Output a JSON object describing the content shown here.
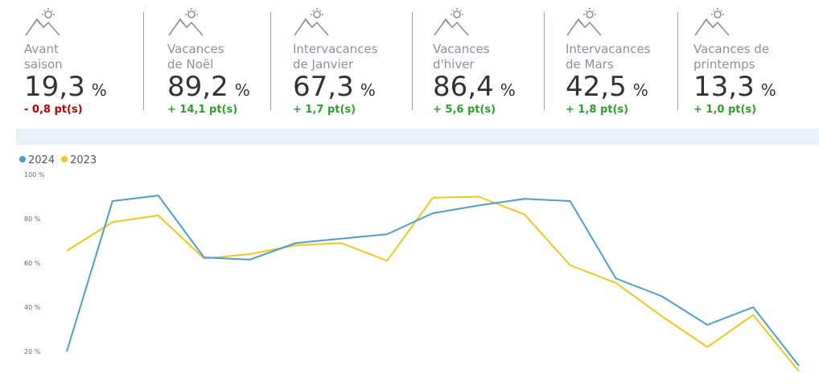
{
  "kpis": [
    {
      "label": [
        "Avant",
        "saison"
      ],
      "value": "19,3",
      "unit": "%",
      "delta": "- 0,8 pt(s)",
      "delta_color": "#c00000"
    },
    {
      "label": [
        "Vacances",
        "de Noël"
      ],
      "value": "89,2",
      "unit": "%",
      "delta": "+ 14,1 pt(s)",
      "delta_color": "#2ca02c"
    },
    {
      "label": [
        "Intervacances",
        "de Janvier"
      ],
      "value": "67,3",
      "unit": "%",
      "delta": "+ 1,7 pt(s)",
      "delta_color": "#2ca02c"
    },
    {
      "label": [
        "Vacances",
        "d'hiver"
      ],
      "value": "86,4",
      "unit": "%",
      "delta": "+ 5,6 pt(s)",
      "delta_color": "#2ca02c"
    },
    {
      "label": [
        "Intervacances",
        "de Mars"
      ],
      "value": "42,5",
      "unit": "%",
      "delta": "+ 1,8 pt(s)",
      "delta_color": "#2ca02c"
    },
    {
      "label": [
        "Vacances de",
        "printemps"
      ],
      "value": "13,3",
      "unit": "%",
      "delta": "+ 1,0 pt(s)",
      "delta_color": "#2ca02c"
    }
  ],
  "chart_data": {
    "type": "line",
    "categories": [
      null,
      null,
      null,
      null,
      null,
      null,
      null,
      null,
      null,
      null,
      null,
      null,
      null,
      null,
      null,
      null,
      null
    ],
    "series": [
      {
        "name": "2024",
        "color": "#4a9fd0",
        "values": [
          20,
          88,
          90.5,
          62.5,
          61.5,
          69,
          71,
          73,
          82.5,
          86,
          89,
          88,
          53,
          45,
          32,
          40,
          13.5
        ]
      },
      {
        "name": "2023",
        "color": "#f5c518",
        "values": [
          65.5,
          78.5,
          81.5,
          62,
          64,
          68,
          69,
          61,
          89.5,
          90,
          82,
          59,
          51,
          36,
          22,
          36.5,
          11
        ]
      }
    ],
    "ylim": [
      10,
      100
    ],
    "yticks": [
      {
        "value": 20,
        "label": "20 %"
      },
      {
        "value": 40,
        "label": "40 %"
      },
      {
        "value": 60,
        "label": "60 %"
      },
      {
        "value": 80,
        "label": "80 %"
      },
      {
        "value": 100,
        "label": "100 %"
      }
    ],
    "grid": false,
    "legend": "top-left"
  }
}
